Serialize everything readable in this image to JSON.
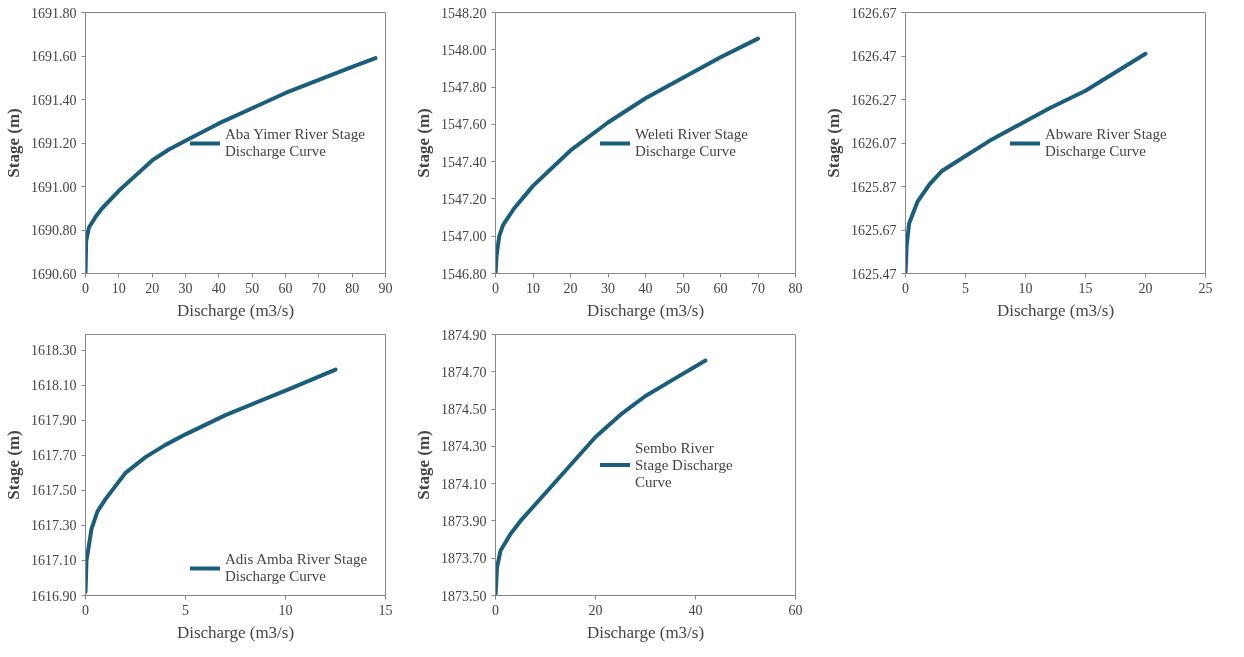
{
  "chart_data": [
    {
      "type": "line",
      "xlabel": "Discharge (m3/s)",
      "ylabel": "Stage (m)",
      "legend": "right",
      "grid": false,
      "line_style": "solid",
      "xlim": [
        0,
        90
      ],
      "xticks": [
        0,
        10,
        20,
        30,
        40,
        50,
        60,
        70,
        80,
        90
      ],
      "ylim": [
        1690.6,
        1691.8
      ],
      "yticks": [
        {
          "value": 1690.6,
          "label": "1690.60"
        },
        {
          "value": 1690.8,
          "label": "1690.80"
        },
        {
          "value": 1691.0,
          "label": "1691.00"
        },
        {
          "value": 1691.2,
          "label": "1691.20"
        },
        {
          "value": 1691.4,
          "label": "1691.40"
        },
        {
          "value": 1691.6,
          "label": "1691.60"
        },
        {
          "value": 1691.8,
          "label": "1691.80"
        }
      ],
      "series": [
        {
          "name": "Aba Yimer River Stage Discharge Curve",
          "color": "#1b5e7b",
          "x": [
            0,
            0.2,
            1,
            3,
            5,
            10,
            15,
            20,
            25,
            30,
            40,
            50,
            60,
            70,
            80,
            87
          ],
          "values": [
            1690.6,
            1690.75,
            1690.81,
            1690.86,
            1690.9,
            1690.98,
            1691.05,
            1691.12,
            1691.17,
            1691.21,
            1691.29,
            1691.36,
            1691.43,
            1691.49,
            1691.55,
            1691.59
          ]
        }
      ]
    },
    {
      "type": "line",
      "xlabel": "Discharge (m3/s)",
      "ylabel": "Stage (m)",
      "legend": "right",
      "grid": false,
      "line_style": "solid",
      "xlim": [
        0,
        80
      ],
      "xticks": [
        0,
        10,
        20,
        30,
        40,
        50,
        60,
        70,
        80
      ],
      "ylim": [
        1546.8,
        1548.2
      ],
      "yticks": [
        {
          "value": 1546.8,
          "label": "1546.80"
        },
        {
          "value": 1547.0,
          "label": "1547.00"
        },
        {
          "value": 1547.2,
          "label": "1547.20"
        },
        {
          "value": 1547.4,
          "label": "1547.40"
        },
        {
          "value": 1547.6,
          "label": "1547.60"
        },
        {
          "value": 1547.8,
          "label": "1547.80"
        },
        {
          "value": 1548.0,
          "label": "1548.00"
        },
        {
          "value": 1548.2,
          "label": "1548.20"
        }
      ],
      "series": [
        {
          "name": "Weleti River Stage Discharge Curve",
          "color": "#1b5e7b",
          "x": [
            0,
            0.3,
            1,
            2,
            5,
            10,
            20,
            30,
            40,
            50,
            60,
            70
          ],
          "values": [
            1546.8,
            1546.9,
            1547.0,
            1547.06,
            1547.15,
            1547.27,
            1547.46,
            1547.61,
            1547.74,
            1547.85,
            1547.96,
            1548.06
          ]
        }
      ]
    },
    {
      "type": "line",
      "xlabel": "Discharge (m3/s)",
      "ylabel": "Stage (m)",
      "legend": "right",
      "grid": false,
      "line_style": "solid",
      "xlim": [
        0,
        25
      ],
      "xticks": [
        0,
        5,
        10,
        15,
        20,
        25
      ],
      "ylim": [
        1625.47,
        1626.67
      ],
      "yticks": [
        1625.47,
        1625.67,
        1625.87,
        1626.07,
        1626.27,
        1626.47,
        1626.67
      ],
      "series": [
        {
          "name": "Abware River Stage Discharge Curve",
          "color": "#1b5e7b",
          "x": [
            0,
            0.1,
            0.3,
            1,
            2,
            3,
            5,
            7,
            10,
            12,
            15,
            20
          ],
          "values": [
            1625.47,
            1625.6,
            1625.7,
            1625.8,
            1625.88,
            1625.94,
            1626.01,
            1626.08,
            1626.17,
            1626.23,
            1626.31,
            1626.48
          ]
        }
      ]
    },
    {
      "type": "line",
      "xlabel": "Discharge (m3/s)",
      "ylabel": "Stage (m)",
      "legend": "bottom right",
      "grid": false,
      "line_style": "solid",
      "xlim": [
        0,
        15
      ],
      "xticks": [
        0,
        5,
        10,
        15
      ],
      "ylim": [
        1616.9,
        1618.39
      ],
      "yticks": [
        {
          "value": 1616.9,
          "label": "1616.90"
        },
        {
          "value": 1617.1,
          "label": "1617.10"
        },
        {
          "value": 1617.3,
          "label": "1617.30"
        },
        {
          "value": 1617.5,
          "label": "1617.50"
        },
        {
          "value": 1617.7,
          "label": "1617.70"
        },
        {
          "value": 1617.9,
          "label": "1617.90"
        },
        {
          "value": 1618.1,
          "label": "1618.10"
        },
        {
          "value": 1618.3,
          "label": "1618.30"
        }
      ],
      "series": [
        {
          "name": "Adis Amba River Stage Discharge Curve",
          "color": "#1b5e7b",
          "x": [
            0,
            0.05,
            0.3,
            0.6,
            1,
            2,
            3,
            4,
            5,
            7,
            10,
            12.5
          ],
          "values": [
            1616.92,
            1617.1,
            1617.28,
            1617.38,
            1617.45,
            1617.6,
            1617.69,
            1617.76,
            1617.82,
            1617.93,
            1618.07,
            1618.19
          ]
        }
      ]
    },
    {
      "type": "line",
      "xlabel": "Discharge (m3/s)",
      "ylabel": "Stage (m)",
      "legend": "right",
      "grid": false,
      "line_style": "solid",
      "xlim": [
        0,
        60
      ],
      "xticks": [
        0,
        20,
        40,
        60
      ],
      "ylim": [
        1873.5,
        1874.9
      ],
      "yticks": [
        {
          "value": 1873.5,
          "label": "1873.50"
        },
        {
          "value": 1873.7,
          "label": "1873.70"
        },
        {
          "value": 1873.9,
          "label": "1873.90"
        },
        {
          "value": 1874.1,
          "label": "1874.10"
        },
        {
          "value": 1874.3,
          "label": "1874.30"
        },
        {
          "value": 1874.5,
          "label": "1874.50"
        },
        {
          "value": 1874.7,
          "label": "1874.70"
        },
        {
          "value": 1874.9,
          "label": "1874.90"
        }
      ],
      "series": [
        {
          "name": "Sembo River Stage Discharge Curve",
          "color": "#1b5e7b",
          "x": [
            0,
            0.3,
            1,
            3,
            5,
            10,
            15,
            20,
            25,
            30,
            35,
            42
          ],
          "values": [
            1873.5,
            1873.65,
            1873.74,
            1873.83,
            1873.9,
            1874.05,
            1874.2,
            1874.35,
            1874.47,
            1874.57,
            1874.65,
            1874.76
          ]
        }
      ]
    }
  ]
}
